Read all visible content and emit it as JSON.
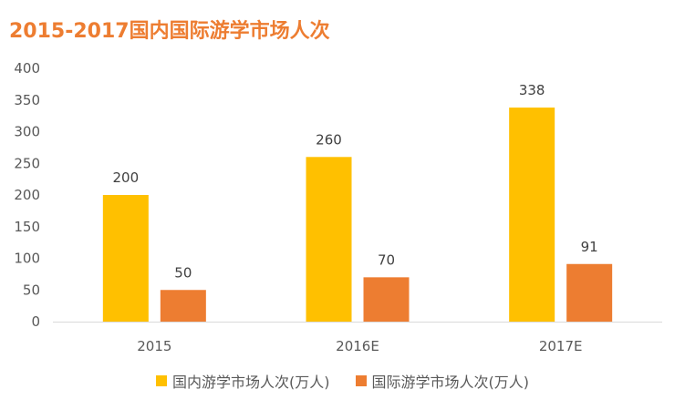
{
  "chart_data": {
    "type": "bar",
    "title": "2015-2017国内国际游学市场人次",
    "categories": [
      "2015",
      "2016E",
      "2017E"
    ],
    "series": [
      {
        "name": "国内游学市场人次(万人)",
        "values": [
          200,
          260,
          338
        ],
        "color": "#FFC000"
      },
      {
        "name": "国际游学市场人次(万人)",
        "values": [
          50,
          70,
          91
        ],
        "color": "#ED7D31"
      }
    ],
    "y_ticks": [
      "0",
      "50",
      "100",
      "150",
      "200",
      "250",
      "300",
      "350",
      "400"
    ],
    "ylim": [
      0,
      400
    ],
    "grid": false,
    "legend_position": "bottom",
    "axis_color": "#D9D9D9"
  }
}
